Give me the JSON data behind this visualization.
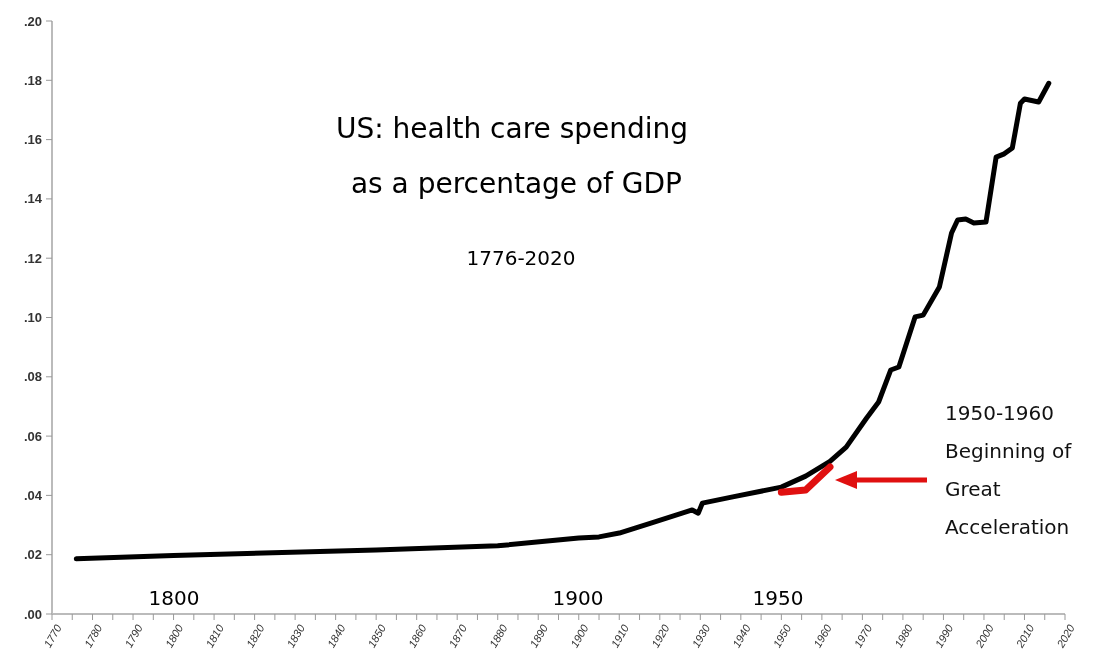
{
  "chart_data": {
    "type": "line",
    "title": "US: health care spending\n as a percentage of GDP",
    "subtitle": "1776-2020",
    "xlim": [
      1770,
      2020
    ],
    "xticks": [
      1770,
      {
        "value": 1775,
        "label": null
      },
      1780,
      {
        "value": 1785,
        "label": null
      },
      1790,
      {
        "value": 1795,
        "label": null
      },
      1800,
      {
        "value": 1805,
        "label": null
      },
      1810,
      {
        "value": 1815,
        "label": null
      },
      1820,
      {
        "value": 1825,
        "label": null
      },
      1830,
      {
        "value": 1835,
        "label": null
      },
      1840,
      {
        "value": 1845,
        "label": null
      },
      1850,
      {
        "value": 1855,
        "label": null
      },
      1860,
      {
        "value": 1865,
        "label": null
      },
      1870,
      {
        "value": 1875,
        "label": null
      },
      1880,
      {
        "value": 1885,
        "label": null
      },
      1890,
      {
        "value": 1895,
        "label": null
      },
      1900,
      {
        "value": 1905,
        "label": null
      },
      1910,
      {
        "value": 1915,
        "label": null
      },
      1920,
      {
        "value": 1925,
        "label": null
      },
      1930,
      {
        "value": 1935,
        "label": null
      },
      1940,
      {
        "value": 1945,
        "label": null
      },
      1950,
      {
        "value": 1955,
        "label": null
      },
      1960,
      {
        "value": 1965,
        "label": null
      },
      1970,
      {
        "value": 1975,
        "label": null
      },
      1980,
      {
        "value": 1985,
        "label": null
      },
      1990,
      {
        "value": 1995,
        "label": null
      },
      2000,
      {
        "value": 2005,
        "label": null
      },
      2010,
      {
        "value": 2015,
        "label": null
      },
      2020
    ],
    "ylim": [
      0,
      0.2
    ],
    "yticks": [
      {
        "value": 0,
        "label": ".00"
      },
      {
        "value": 0.02,
        "label": ".02"
      },
      {
        "value": 0.04,
        "label": ".04"
      },
      {
        "value": 0.06,
        "label": ".06"
      },
      {
        "value": 0.08,
        "label": ".08"
      },
      {
        "value": 0.1,
        "label": ".10"
      },
      {
        "value": 0.12,
        "label": ".12"
      },
      {
        "value": 0.14,
        "label": ".14"
      },
      {
        "value": 0.16,
        "label": ".16"
      },
      {
        "value": 0.18,
        "label": ".18"
      },
      {
        "value": 0.2,
        "label": ".20"
      }
    ],
    "grid": false,
    "marker": "none",
    "line_style": "solid",
    "series": [
      {
        "color": "#000000",
        "x": [
          1776,
          1800,
          1850,
          1880,
          1900,
          1905,
          1910,
          1918,
          1928,
          1929.5,
          1930.5,
          1938,
          1950,
          1956,
          1962,
          1966,
          1971,
          1974,
          1977,
          1979,
          1983,
          1985,
          1989,
          1992,
          1993.5,
          1995.5,
          1997.5,
          2000.5,
          2003,
          2005,
          2007,
          2009,
          2010,
          2013.5,
          2016
        ],
        "values": [
          0.0186,
          0.0197,
          0.0216,
          0.023,
          0.0256,
          0.026,
          0.0273,
          0.0307,
          0.0351,
          0.034,
          0.0374,
          0.0395,
          0.0428,
          0.0465,
          0.0515,
          0.0563,
          0.066,
          0.0715,
          0.0823,
          0.0833,
          0.1002,
          0.1008,
          0.1103,
          0.1285,
          0.1329,
          0.1332,
          0.1319,
          0.1322,
          0.1541,
          0.1552,
          0.1572,
          0.1723,
          0.1737,
          0.1727,
          0.179
        ]
      },
      {
        "color": "#e01010",
        "x": [
          1950,
          1956,
          1962
        ],
        "values": [
          0.0411,
          0.0418,
          0.0496
        ]
      }
    ],
    "annotations": [
      "1800",
      "1900",
      "1950",
      "1950-1960\nBeginning of\nGreat\nAcceleration"
    ]
  }
}
